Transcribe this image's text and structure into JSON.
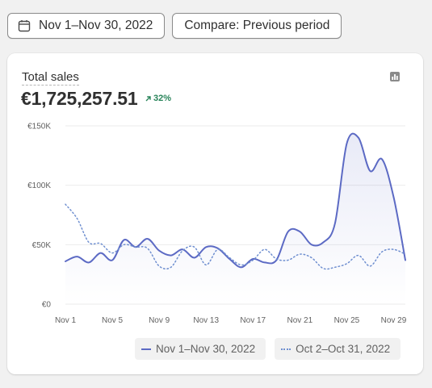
{
  "toolbar": {
    "date_range": "Nov 1–Nov 30, 2022",
    "compare": "Compare: Previous period"
  },
  "metric": {
    "title": "Total sales",
    "value": "€1,725,257.51",
    "change": "32%"
  },
  "colors": {
    "current": "#5c6ac4",
    "previous": "#6f8fd0",
    "positive": "#29845a"
  },
  "chart_data": {
    "type": "line",
    "ylim": [
      0,
      150000
    ],
    "y_ticks": [
      "€0",
      "€50K",
      "€100K",
      "€150K"
    ],
    "x_ticks": [
      "Nov 1",
      "Nov 5",
      "Nov 9",
      "Nov 13",
      "Nov 17",
      "Nov 21",
      "Nov 25",
      "Nov 29"
    ],
    "x_count": 30,
    "series": [
      {
        "name": "Nov 1–Nov 30, 2022",
        "style": "solid",
        "values": [
          36000,
          40000,
          35000,
          43000,
          37000,
          54000,
          48000,
          55000,
          45000,
          41000,
          46000,
          39000,
          48000,
          47000,
          38000,
          31000,
          38000,
          35000,
          37000,
          61000,
          61000,
          50000,
          52000,
          68000,
          135000,
          140000,
          112000,
          122000,
          90000,
          37000
        ]
      },
      {
        "name": "Oct 2–Oct 31, 2022",
        "style": "dotted",
        "values": [
          84000,
          72000,
          52000,
          51000,
          43000,
          50000,
          48000,
          47000,
          32000,
          31000,
          45000,
          48000,
          33000,
          46000,
          39000,
          33000,
          37000,
          46000,
          38000,
          37000,
          42000,
          39000,
          30000,
          31000,
          34000,
          41000,
          32000,
          44000,
          46000,
          42000
        ]
      }
    ]
  },
  "legend": {
    "current": "Nov 1–Nov 30, 2022",
    "previous": "Oct 2–Oct 31, 2022"
  }
}
